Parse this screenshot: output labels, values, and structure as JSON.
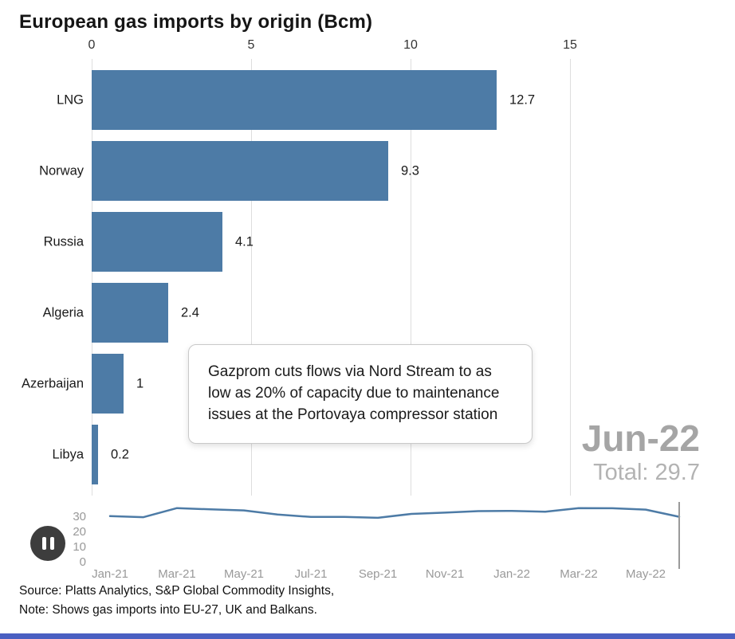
{
  "title": "European gas imports by origin (Bcm)",
  "colors": {
    "bar": "#4d7ba6",
    "line": "#4d7ba6",
    "grid": "#dedede",
    "progress": "#4a5fc1"
  },
  "chart_data": [
    {
      "type": "bar",
      "orientation": "horizontal",
      "title": "European gas imports by origin (Bcm)",
      "categories": [
        "LNG",
        "Norway",
        "Russia",
        "Algeria",
        "Azerbaijan",
        "Libya"
      ],
      "values": [
        12.7,
        9.3,
        4.1,
        2.4,
        1,
        0.2
      ],
      "value_labels": [
        "12.7",
        "9.3",
        "4.1",
        "2.4",
        "1",
        "0.2"
      ],
      "x_ticks": [
        "0",
        "5",
        "10",
        "15"
      ],
      "x_tick_values": [
        0,
        5,
        10,
        15
      ],
      "xlim": [
        0,
        19
      ],
      "grid": true,
      "bar_color": "#4d7ba6"
    },
    {
      "type": "line",
      "title": "Total imports timeline",
      "x": [
        "Jan-21",
        "Feb-21",
        "Mar-21",
        "Apr-21",
        "May-21",
        "Jun-21",
        "Jul-21",
        "Aug-21",
        "Sep-21",
        "Oct-21",
        "Nov-21",
        "Dec-21",
        "Jan-22",
        "Feb-22",
        "Mar-22",
        "Apr-22",
        "May-22",
        "Jun-22"
      ],
      "values": [
        30.1,
        29.4,
        35.4,
        34.6,
        33.9,
        31.2,
        29.6,
        29.6,
        29.0,
        31.6,
        32.4,
        33.4,
        33.6,
        33.0,
        35.4,
        35.3,
        34.4,
        29.7
      ],
      "y_ticks": [
        "0",
        "10",
        "20",
        "30"
      ],
      "ylim": [
        0,
        38
      ],
      "x_tick_labels": [
        "Jan-21",
        "Mar-21",
        "May-21",
        "Jul-21",
        "Sep-21",
        "Nov-21",
        "Jan-22",
        "Mar-22",
        "May-22"
      ],
      "line_color": "#4d7ba6",
      "cursor_month": "Jun-22",
      "legend": "off"
    }
  ],
  "annotation": {
    "text": "Gazprom cuts flows via Nord Stream to as low as 20% of capacity due to maintenance issues at the Portovaya compressor station"
  },
  "period": {
    "label": "Jun-22",
    "total": "Total: 29.7"
  },
  "controls": {
    "pause_button": "pause"
  },
  "footer": {
    "source": "Source: Platts Analytics, S&P Global Commodity Insights,",
    "note": "Note: Shows gas imports into EU-27, UK and Balkans."
  }
}
